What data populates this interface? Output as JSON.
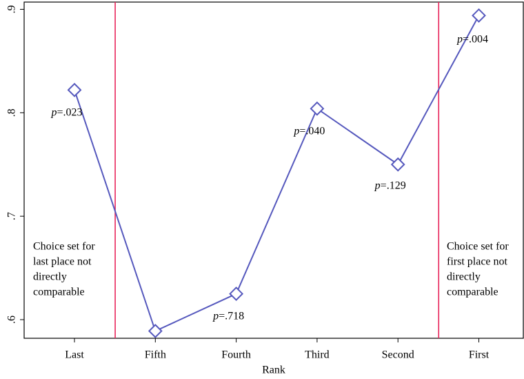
{
  "chart_data": {
    "type": "line",
    "x_label": "Rank",
    "categories": [
      "Last",
      "Fifth",
      "Fourth",
      "Third",
      "Second",
      "First"
    ],
    "values": [
      0.822,
      0.589,
      0.625,
      0.804,
      0.75,
      0.894
    ],
    "point_labels": [
      "p=.023",
      null,
      "p=.718",
      "p=.040",
      "p=.129",
      "p=.004"
    ],
    "color": "#5558bd",
    "separator_color": "#e8245a",
    "ylim": [
      0.582,
      0.907
    ],
    "yticks": [
      {
        "value": 0.6,
        "label": ".6"
      },
      {
        "value": 0.7,
        "label": ".7"
      },
      {
        "value": 0.8,
        "label": ".8"
      },
      {
        "value": 0.9,
        "label": ".9"
      }
    ],
    "annotations": [
      {
        "lines": [
          "Choice set for",
          "last place not",
          "directly",
          "comparable"
        ]
      },
      {
        "lines": [
          "Choice set for",
          "first place not",
          "directly",
          "comparable"
        ]
      }
    ]
  }
}
